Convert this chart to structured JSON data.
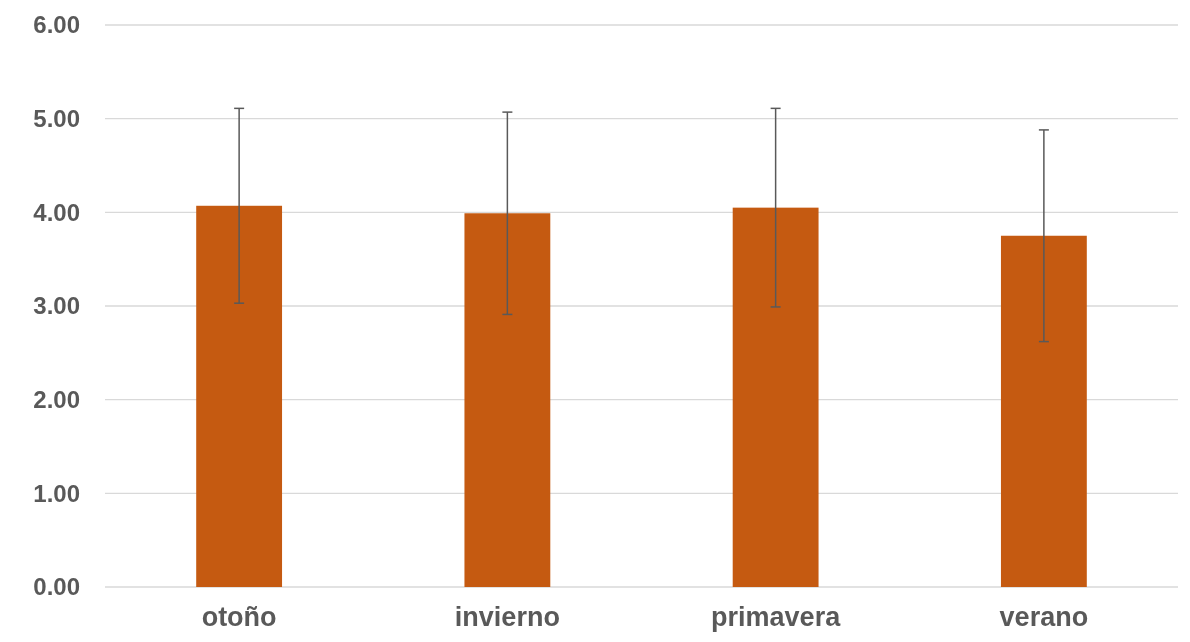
{
  "chart_data": {
    "type": "bar",
    "categories": [
      "otoño",
      "invierno",
      "primavera",
      "verano"
    ],
    "values": [
      4.07,
      3.99,
      4.05,
      3.75
    ],
    "errors": [
      1.04,
      1.08,
      1.06,
      1.13
    ],
    "color": "#c55a11",
    "ylim": [
      0,
      6
    ],
    "yticks": [
      {
        "value": 0,
        "label": "0.00"
      },
      {
        "value": 1,
        "label": "1.00"
      },
      {
        "value": 2,
        "label": "2.00"
      },
      {
        "value": 3,
        "label": "3.00"
      },
      {
        "value": 4,
        "label": "4.00"
      },
      {
        "value": 5,
        "label": "5.00"
      },
      {
        "value": 6,
        "label": "6.00"
      }
    ],
    "grid": true
  }
}
